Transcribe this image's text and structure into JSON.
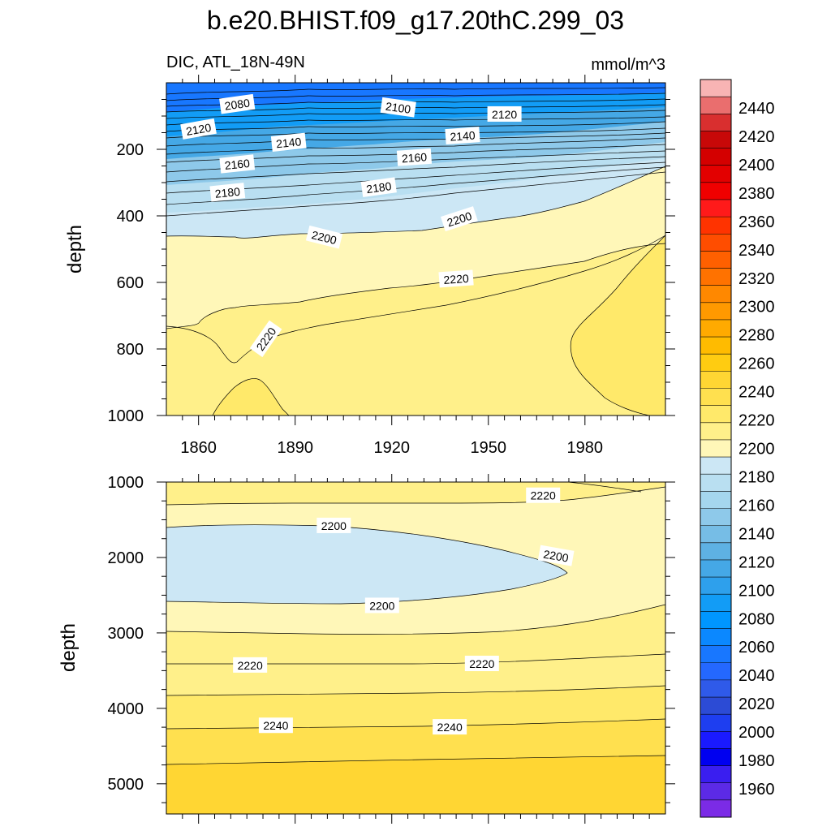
{
  "figure": {
    "title": "b.e20.BHIST.f09_g17.20thC.299_03",
    "left_subtitle": "DIC, ATL_18N-49N",
    "right_subtitle": "mmol/m^3"
  },
  "chart_data": [
    {
      "type": "heatmap",
      "name": "upper-panel",
      "xlabel": "",
      "ylabel": "depth",
      "xlim": [
        1850,
        2005
      ],
      "ylim": [
        0,
        1000
      ],
      "y_inverted": true,
      "x_ticks": [
        1860,
        1890,
        1920,
        1950,
        1980
      ],
      "y_ticks": [
        200,
        400,
        600,
        800,
        1000
      ],
      "contour_labels": [
        {
          "text": "2080",
          "x": 1872,
          "y": 65,
          "angle": -8
        },
        {
          "text": "2100",
          "x": 1922,
          "y": 75,
          "angle": 8
        },
        {
          "text": "2120",
          "x": 1955,
          "y": 95,
          "angle": 0
        },
        {
          "text": "2120",
          "x": 1860,
          "y": 140,
          "angle": -10
        },
        {
          "text": "2140",
          "x": 1888,
          "y": 180,
          "angle": -6
        },
        {
          "text": "2140",
          "x": 1942,
          "y": 160,
          "angle": -4
        },
        {
          "text": "2160",
          "x": 1872,
          "y": 245,
          "angle": -6
        },
        {
          "text": "2160",
          "x": 1927,
          "y": 225,
          "angle": -4
        },
        {
          "text": "2180",
          "x": 1869,
          "y": 330,
          "angle": -6
        },
        {
          "text": "2180",
          "x": 1916,
          "y": 315,
          "angle": -8
        },
        {
          "text": "2200",
          "x": 1899,
          "y": 465,
          "angle": 14
        },
        {
          "text": "2200",
          "x": 1941,
          "y": 410,
          "angle": -18
        },
        {
          "text": "2220",
          "x": 1940,
          "y": 590,
          "angle": -4
        },
        {
          "text": "2220",
          "x": 1881,
          "y": 770,
          "angle": -55
        }
      ]
    },
    {
      "type": "heatmap",
      "name": "lower-panel",
      "xlabel": "",
      "ylabel": "depth",
      "xlim": [
        1850,
        2005
      ],
      "ylim": [
        1000,
        5400
      ],
      "y_inverted": true,
      "y_ticks": [
        1000,
        2000,
        3000,
        4000,
        5000
      ],
      "contour_labels": [
        {
          "text": "2220",
          "x": 1967,
          "y": 1180,
          "angle": 0
        },
        {
          "text": "2200",
          "x": 1902,
          "y": 1580,
          "angle": 0
        },
        {
          "text": "2200",
          "x": 1971,
          "y": 1980,
          "angle": 10
        },
        {
          "text": "2200",
          "x": 1917,
          "y": 2640,
          "angle": 0
        },
        {
          "text": "2220",
          "x": 1876,
          "y": 3430,
          "angle": 0
        },
        {
          "text": "2220",
          "x": 1948,
          "y": 3410,
          "angle": 0
        },
        {
          "text": "2240",
          "x": 1884,
          "y": 4230,
          "angle": 0
        },
        {
          "text": "2240",
          "x": 1938,
          "y": 4250,
          "angle": 0
        }
      ]
    }
  ],
  "colorbar": {
    "labels": [
      "2440",
      "2420",
      "2400",
      "2380",
      "2360",
      "2340",
      "2320",
      "2300",
      "2280",
      "2260",
      "2240",
      "2220",
      "2200",
      "2180",
      "2160",
      "2140",
      "2120",
      "2100",
      "2080",
      "2060",
      "2040",
      "2020",
      "2000",
      "1980",
      "1960"
    ],
    "colors_top_to_bottom": [
      "#f8b4b4",
      "#ea6e6e",
      "#d92f2f",
      "#c80808",
      "#d40000",
      "#e30000",
      "#f00000",
      "#ff1a1a",
      "#ff3300",
      "#ff4d00",
      "#ff6000",
      "#ff7200",
      "#ff8800",
      "#ff9900",
      "#ffaa00",
      "#ffbb00",
      "#ffcc11",
      "#ffd633",
      "#ffe04f",
      "#ffe96a",
      "#fff08a",
      "#fff7b8",
      "#cce7f5",
      "#b9dff1",
      "#a5d6ee",
      "#8ec9ea",
      "#76bde6",
      "#5eb1e3",
      "#45a8e6",
      "#2ea0ec",
      "#129cf6",
      "#0096ff",
      "#0b88ff",
      "#1877ff",
      "#2468ff",
      "#2f5ae9",
      "#2c4bd5",
      "#1e3ef0",
      "#1a1aff",
      "#0000f0",
      "#3a1ef0",
      "#5c2ae6",
      "#7b2be6"
    ]
  }
}
